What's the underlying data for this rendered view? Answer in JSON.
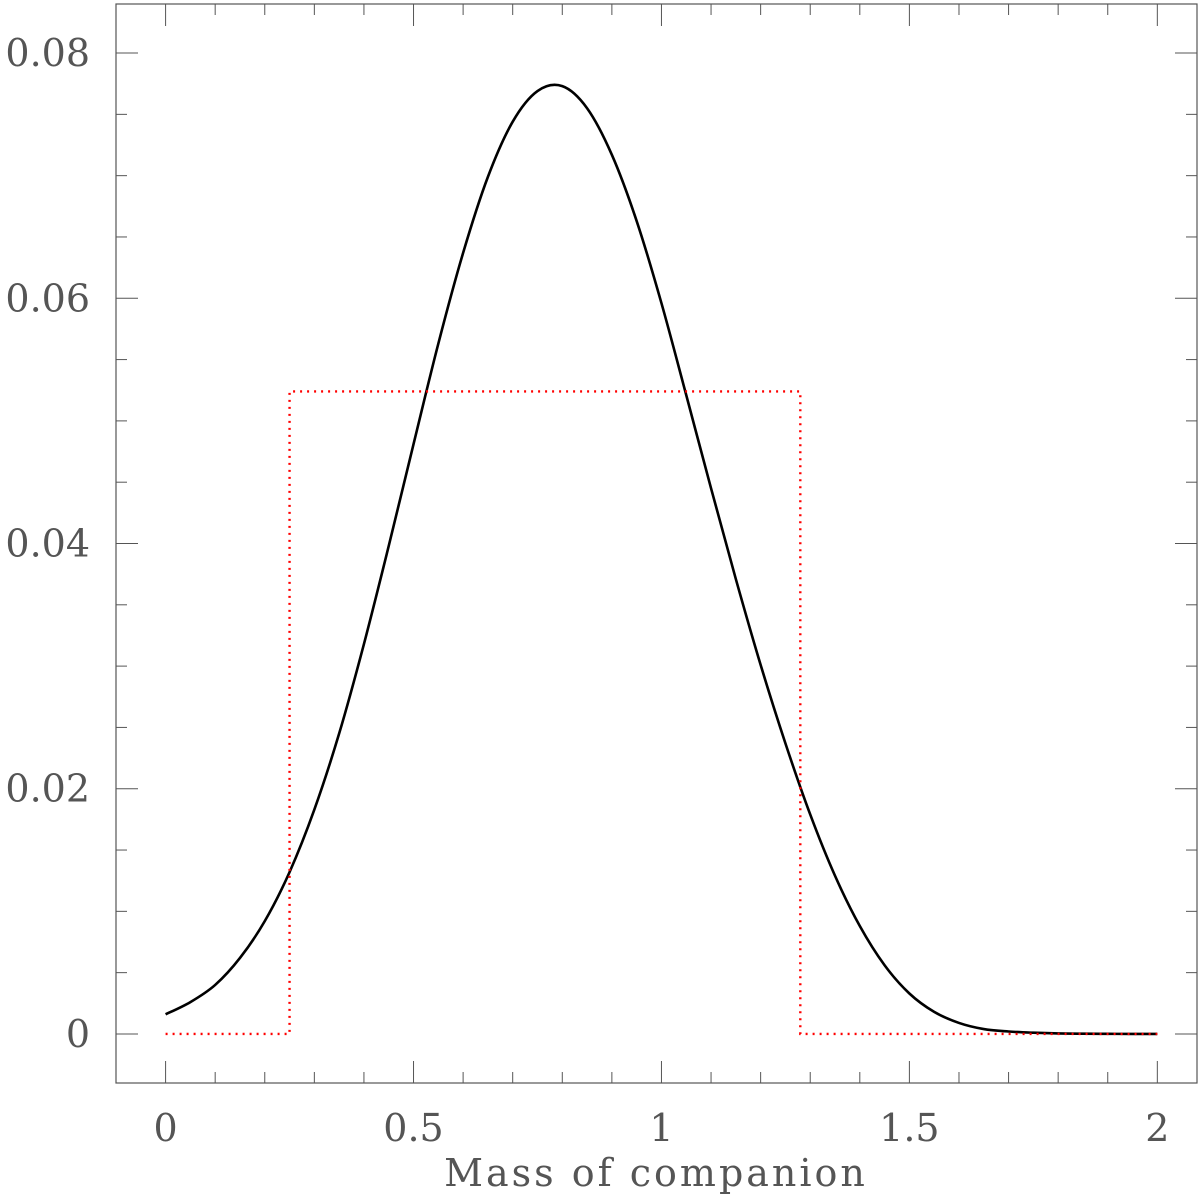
{
  "chart_data": {
    "type": "line",
    "title": "",
    "xlabel": "Mass of companion",
    "ylabel": "",
    "xlim": [
      -0.1,
      2.08
    ],
    "ylim": [
      -0.004,
      0.084
    ],
    "grid": false,
    "x_ticks": [
      {
        "value": 0,
        "label": "0"
      },
      {
        "value": 0.5,
        "label": "0.5"
      },
      {
        "value": 1,
        "label": "1"
      },
      {
        "value": 1.5,
        "label": "1.5"
      },
      {
        "value": 2,
        "label": "2"
      }
    ],
    "y_ticks": [
      {
        "value": 0,
        "label": "0"
      },
      {
        "value": 0.02,
        "label": "0.02"
      },
      {
        "value": 0.04,
        "label": "0.04"
      },
      {
        "value": 0.06,
        "label": "0.06"
      },
      {
        "value": 0.08,
        "label": "0.08"
      }
    ],
    "series": [
      {
        "style": "solid",
        "color": "#000000",
        "x": [
          0.0,
          0.05,
          0.1,
          0.15,
          0.2,
          0.25,
          0.3,
          0.35,
          0.4,
          0.45,
          0.5,
          0.55,
          0.6,
          0.65,
          0.7,
          0.75,
          0.8,
          0.85,
          0.9,
          0.95,
          1.0,
          1.05,
          1.1,
          1.15,
          1.2,
          1.25,
          1.3,
          1.35,
          1.4,
          1.45,
          1.5,
          1.55,
          1.6,
          1.65,
          1.7,
          1.75,
          1.8,
          1.85,
          1.9,
          1.95,
          2.0
        ],
        "y": [
          0.0016,
          0.0026,
          0.004,
          0.0062,
          0.0092,
          0.0132,
          0.0183,
          0.0245,
          0.0318,
          0.0398,
          0.0481,
          0.0563,
          0.0637,
          0.0699,
          0.0744,
          0.0769,
          0.0773,
          0.0755,
          0.0717,
          0.0663,
          0.0596,
          0.0521,
          0.0445,
          0.0371,
          0.0301,
          0.0237,
          0.0179,
          0.0129,
          0.0088,
          0.0056,
          0.0033,
          0.0018,
          0.0009,
          0.0004,
          0.0002,
          0.0001,
          4e-05,
          2e-05,
          1e-05,
          0.0,
          0.0
        ]
      },
      {
        "style": "dotted",
        "color": "#ff0000",
        "x": [
          0.0,
          0.25,
          0.25,
          1.28,
          1.28,
          2.0
        ],
        "y": [
          0.0,
          0.0,
          0.0524,
          0.0524,
          0.0,
          0.0
        ]
      }
    ]
  }
}
